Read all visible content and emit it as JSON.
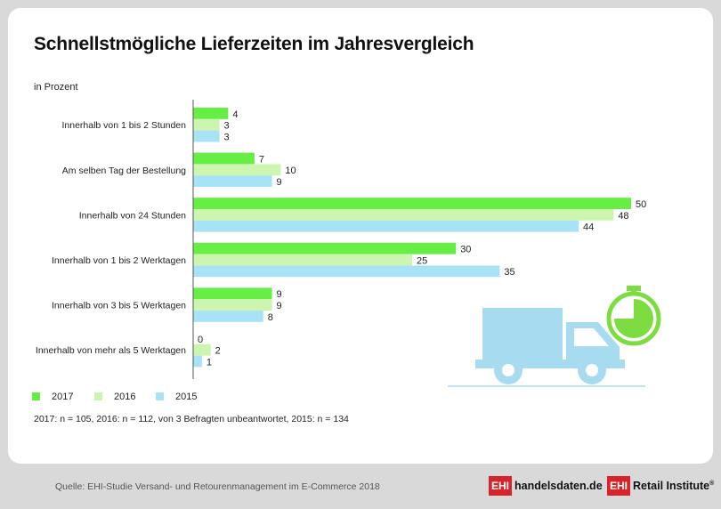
{
  "title": "Schnellstmögliche Lieferzeiten im Jahresvergleich",
  "subtitle": "in Prozent",
  "note": "2017: n = 105, 2016: n = 112, von 3 Befragten unbeantwortet, 2015: n = 134",
  "source": "Quelle: EHI-Studie Versand- und Retourenmanagement im E-Commerce 2018",
  "logos": {
    "handelsdaten_box": "EHI",
    "handelsdaten_text": "handelsdaten.de",
    "retail_box": "EHI",
    "retail_text": "Retail Institute",
    "retail_mark": "®"
  },
  "colors": {
    "s2017": "#66ee44",
    "s2016": "#ccf5b0",
    "s2015": "#a8e2f6",
    "truck": "#a7dcf0",
    "clock": "#7ddc3f"
  },
  "icons": [
    "delivery-truck-icon",
    "stopwatch-icon"
  ],
  "chart_data": {
    "type": "bar",
    "orientation": "horizontal",
    "title": "Schnellstmögliche Lieferzeiten im Jahresvergleich",
    "unit_label": "in Prozent",
    "categories": [
      "Innerhalb von 1 bis 2 Stunden",
      "Am selben Tag der Bestellung",
      "Innerhalb von 24 Stunden",
      "Innerhalb von 1 bis 2 Werktagen",
      "Innerhalb von 3 bis 5 Werktagen",
      "Innerhalb von mehr als 5 Werktagen"
    ],
    "series": [
      {
        "name": "2017",
        "values": [
          4,
          7,
          50,
          30,
          9,
          0
        ]
      },
      {
        "name": "2016",
        "values": [
          3,
          10,
          48,
          25,
          9,
          2
        ]
      },
      {
        "name": "2015",
        "values": [
          3,
          9,
          44,
          35,
          8,
          1
        ]
      }
    ],
    "xlim": [
      0,
      50
    ],
    "legend": "bottom-left",
    "grid": false
  }
}
